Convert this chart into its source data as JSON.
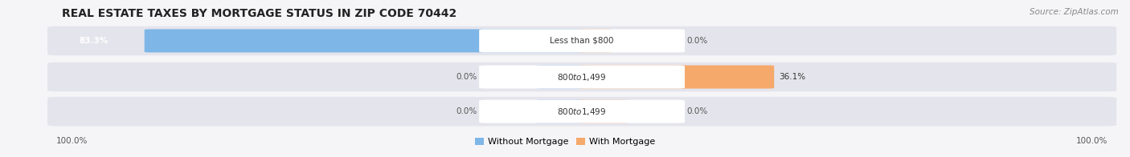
{
  "title": "REAL ESTATE TAXES BY MORTGAGE STATUS IN ZIP CODE 70442",
  "source": "Source: ZipAtlas.com",
  "rows": [
    {
      "label_left": "83.3%",
      "label_center": "Less than $800",
      "label_right": "0.0%",
      "without_mortgage": 83.3,
      "with_mortgage": 0.0,
      "with_mortgage_small": 5.0
    },
    {
      "label_left": "0.0%",
      "label_center": "$800 to $1,499",
      "label_right": "36.1%",
      "without_mortgage": 0.0,
      "without_mortgage_small": 8.0,
      "with_mortgage": 36.1
    },
    {
      "label_left": "0.0%",
      "label_center": "$800 to $1,499",
      "label_right": "0.0%",
      "without_mortgage": 0.0,
      "without_mortgage_small": 8.0,
      "with_mortgage": 0.0,
      "with_mortgage_small": 8.0
    }
  ],
  "x_left_label": "100.0%",
  "x_right_label": "100.0%",
  "color_without": "#7EB6E8",
  "color_with": "#F5A96A",
  "color_bar_bg": "#E4E4EC",
  "color_center_pill": "#FFFFFF",
  "legend_without": "Without Mortgage",
  "legend_with": "With Mortgage",
  "bar_max": 100.0,
  "bg_color": "#F5F5F8"
}
